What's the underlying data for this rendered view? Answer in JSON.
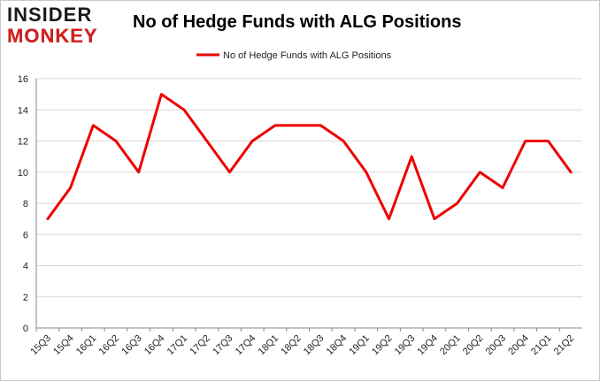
{
  "logo": {
    "top": "INSIDER",
    "bottom": "MONKEY"
  },
  "colors": {
    "line": "#ee0000",
    "grid": "#d9d9d9",
    "logo_red": "#d61f1f"
  },
  "chart_data": {
    "type": "line",
    "title": "No of Hedge Funds with ALG Positions",
    "xlabel": "",
    "ylabel": "",
    "ylim": [
      0,
      16
    ],
    "yticks": [
      0,
      2,
      4,
      6,
      8,
      10,
      12,
      14,
      16
    ],
    "grid": true,
    "legend_position": "top-center",
    "categories": [
      "15Q3",
      "15Q4",
      "16Q1",
      "16Q2",
      "16Q3",
      "16Q4",
      "17Q1",
      "17Q2",
      "17Q3",
      "17Q4",
      "18Q1",
      "18Q2",
      "18Q3",
      "18Q4",
      "19Q1",
      "19Q2",
      "19Q3",
      "19Q4",
      "20Q1",
      "20Q2",
      "20Q3",
      "20Q4",
      "21Q1",
      "21Q2"
    ],
    "series": [
      {
        "name": "No of Hedge Funds with ALG Positions",
        "values": [
          7,
          9,
          13,
          12,
          10,
          15,
          14,
          12,
          10,
          12,
          13,
          13,
          13,
          12,
          10,
          7,
          11,
          7,
          8,
          10,
          9,
          12,
          12,
          10
        ]
      }
    ]
  }
}
